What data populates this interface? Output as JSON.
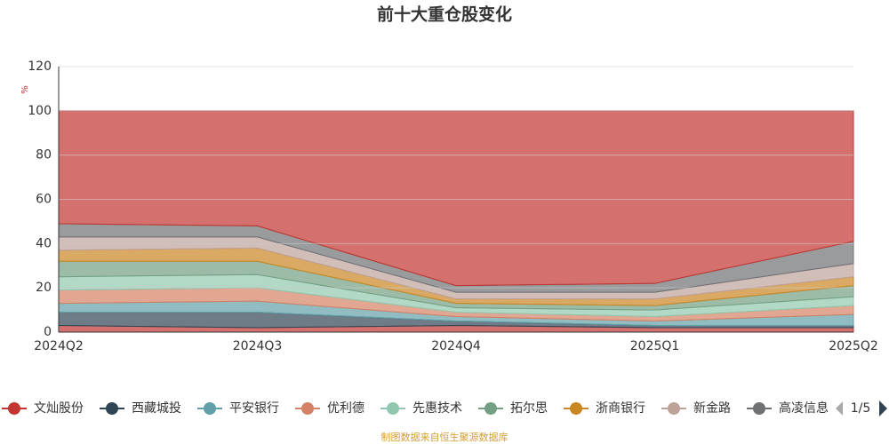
{
  "chart_data": {
    "type": "stacked-area",
    "title": "前十大重仓股变化",
    "y_unit": "%",
    "x": [
      "2024Q2",
      "2024Q3",
      "2024Q4",
      "2025Q1",
      "2025Q2"
    ],
    "ylim": [
      0,
      120
    ],
    "yticks": [
      0,
      20,
      40,
      60,
      80,
      100,
      120
    ],
    "grid": true,
    "series": [
      {
        "name": "文灿股份",
        "color": "#c23531",
        "values": [
          3,
          2,
          3,
          2,
          2
        ]
      },
      {
        "name": "西藏城投",
        "color": "#2f4554",
        "values": [
          6,
          7,
          2,
          1,
          1
        ]
      },
      {
        "name": "平安银行",
        "color": "#61a0a8",
        "values": [
          4,
          5,
          2,
          2,
          5
        ]
      },
      {
        "name": "优利德",
        "color": "#d48265",
        "values": [
          6,
          6,
          2,
          2,
          4
        ]
      },
      {
        "name": "先惠技术",
        "color": "#91c7ae",
        "values": [
          6,
          6,
          2,
          3,
          4
        ]
      },
      {
        "name": "拓尔思",
        "color": "#749f83",
        "values": [
          7,
          6,
          2,
          2,
          5
        ]
      },
      {
        "name": "浙商银行",
        "color": "#ca8622",
        "values": [
          5,
          6,
          2,
          3,
          4
        ]
      },
      {
        "name": "新金路",
        "color": "#bda29a",
        "values": [
          6,
          5,
          3,
          3,
          6
        ]
      },
      {
        "name": "高凌信息",
        "color": "#6e7074",
        "values": [
          6,
          5,
          3,
          4,
          10
        ]
      },
      {
        "color": "#c23531",
        "values": [
          51,
          52,
          79,
          78,
          59
        ]
      }
    ],
    "legend_page": "1/5",
    "footer": "制图数据来自恒生聚源数据库"
  }
}
